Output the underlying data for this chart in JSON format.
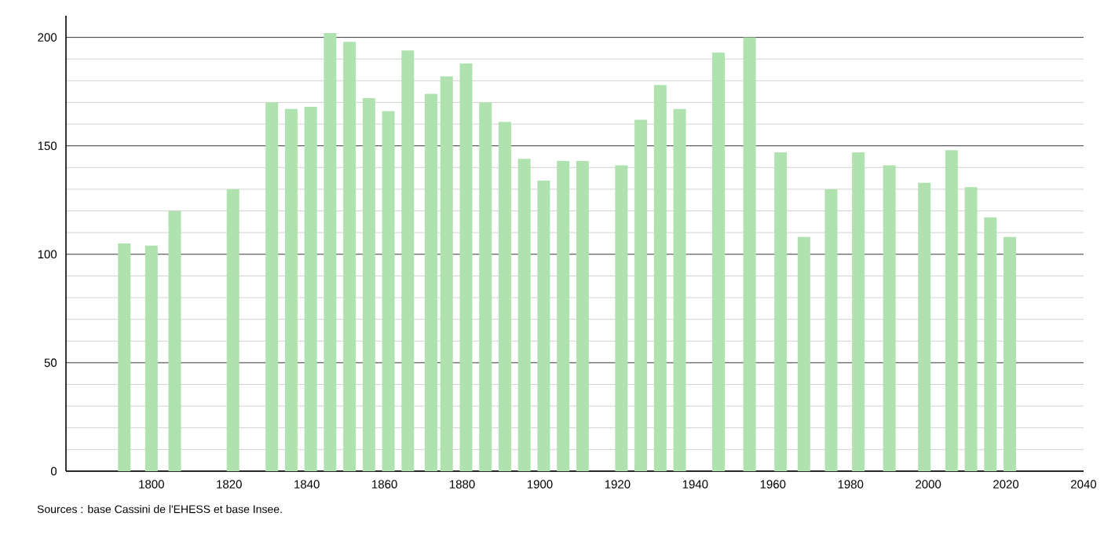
{
  "chart_data": {
    "type": "bar",
    "x": [
      1793,
      1800,
      1806,
      1821,
      1831,
      1836,
      1841,
      1846,
      1851,
      1856,
      1861,
      1866,
      1872,
      1876,
      1881,
      1886,
      1891,
      1896,
      1901,
      1906,
      1911,
      1921,
      1926,
      1931,
      1936,
      1946,
      1954,
      1962,
      1968,
      1975,
      1982,
      1990,
      1999,
      2006,
      2011,
      2016,
      2021
    ],
    "values": [
      105,
      104,
      120,
      130,
      170,
      167,
      168,
      202,
      198,
      172,
      166,
      194,
      174,
      182,
      188,
      170,
      161,
      144,
      134,
      143,
      143,
      141,
      162,
      178,
      167,
      193,
      200,
      147,
      108,
      130,
      147,
      141,
      133,
      148,
      131,
      117,
      108
    ],
    "color": "#b0e2b0",
    "xlim": [
      1778,
      2040
    ],
    "xticks": [
      1800,
      1820,
      1840,
      1860,
      1880,
      1900,
      1920,
      1940,
      1960,
      1980,
      2000,
      2020,
      2040
    ],
    "ylim": [
      0,
      210
    ],
    "yticks": [
      0,
      50,
      100,
      150,
      200
    ],
    "grid": "y",
    "annotations": [
      "Sources : base Cassini de l'EHESS et base Insee."
    ]
  }
}
